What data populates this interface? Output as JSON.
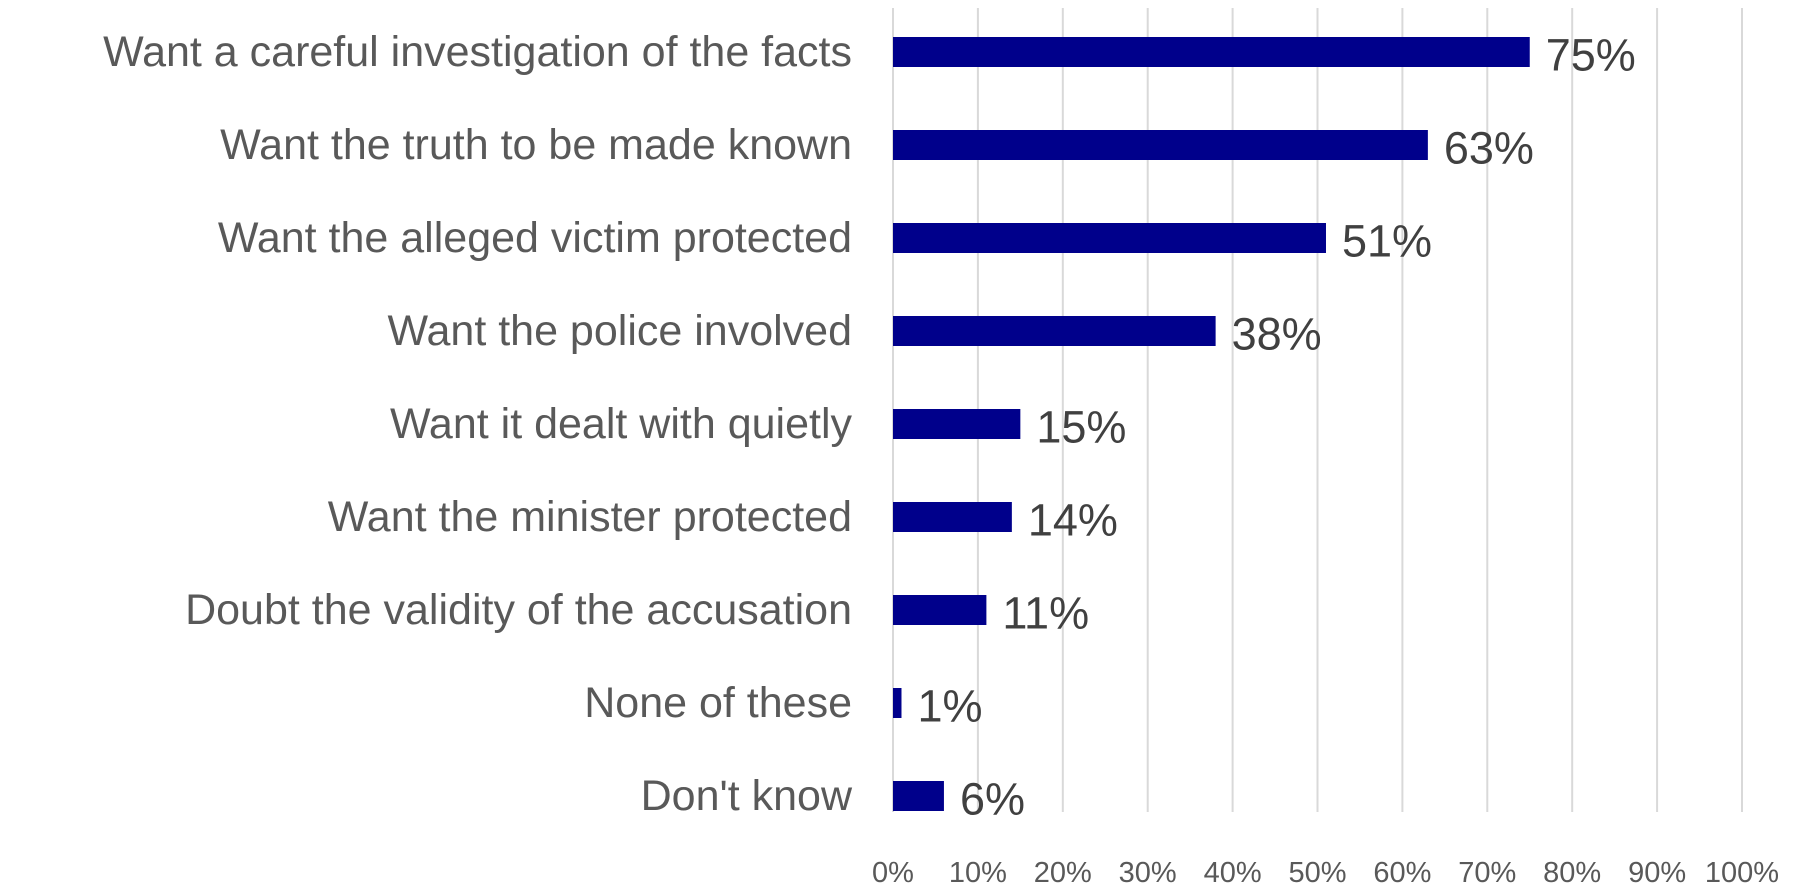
{
  "chart_data": {
    "type": "bar",
    "orientation": "horizontal",
    "categories": [
      "Want a careful investigation of the facts",
      "Want the truth to be made known",
      "Want the alleged victim protected",
      "Want the police involved",
      "Want it dealt with quietly",
      "Want the minister protected",
      "Doubt the validity of the accusation",
      "None of these",
      "Don't know"
    ],
    "values": [
      75,
      63,
      51,
      38,
      15,
      14,
      11,
      1,
      6
    ],
    "value_labels": [
      "75%",
      "63%",
      "51%",
      "38%",
      "15%",
      "14%",
      "11%",
      "1%",
      "6%"
    ],
    "xlim": [
      0,
      100
    ],
    "x_ticks": [
      0,
      10,
      20,
      30,
      40,
      50,
      60,
      70,
      80,
      90,
      100
    ],
    "x_tick_labels": [
      "0%",
      "10%",
      "20%",
      "30%",
      "40%",
      "50%",
      "60%",
      "70%",
      "80%",
      "90%",
      "100%"
    ],
    "grid": "vertical",
    "legend": "none",
    "colors": {
      "bar": "#00008b",
      "grid": "#d9d9d9",
      "category_text": "#595959",
      "value_text": "#404040"
    }
  }
}
